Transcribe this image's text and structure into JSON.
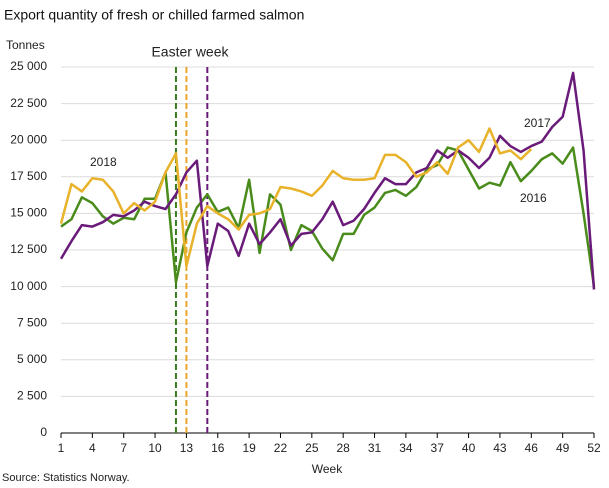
{
  "chart_data": {
    "type": "line",
    "title": "Export quantity of fresh or chilled farmed salmon",
    "y_label": "Tonnes",
    "x_label": "Week",
    "source": "Source: Statistics Norway.",
    "annotation": "Easter week",
    "x": [
      1,
      2,
      3,
      4,
      5,
      6,
      7,
      8,
      9,
      10,
      11,
      12,
      13,
      14,
      15,
      16,
      17,
      18,
      19,
      20,
      21,
      22,
      23,
      24,
      25,
      26,
      27,
      28,
      29,
      30,
      31,
      32,
      33,
      34,
      35,
      36,
      37,
      38,
      39,
      40,
      41,
      42,
      43,
      44,
      45,
      46,
      47,
      48,
      49,
      50,
      51,
      52
    ],
    "xlim": [
      1,
      52
    ],
    "xticks": [
      1,
      4,
      7,
      10,
      13,
      16,
      19,
      22,
      25,
      28,
      31,
      34,
      37,
      40,
      43,
      46,
      49,
      52
    ],
    "ylim": [
      0,
      25000
    ],
    "yticks": [
      {
        "value": 0,
        "label": "0"
      },
      {
        "value": 2500,
        "label": "2 500"
      },
      {
        "value": 5000,
        "label": "5 000"
      },
      {
        "value": 7500,
        "label": "7 500"
      },
      {
        "value": 10000,
        "label": "10 000"
      },
      {
        "value": 12500,
        "label": "12 500"
      },
      {
        "value": 15000,
        "label": "15 000"
      },
      {
        "value": 17500,
        "label": "17 500"
      },
      {
        "value": 20000,
        "label": "20 000"
      },
      {
        "value": 22500,
        "label": "22 500"
      },
      {
        "value": 25000,
        "label": "25 000"
      }
    ],
    "grid": true,
    "reference_lines": [
      {
        "x": 12,
        "color": "#3a7d1e"
      },
      {
        "x": 13,
        "color": "#e8a52a"
      },
      {
        "x": 15,
        "color": "#6a1b7a"
      }
    ],
    "series": [
      {
        "name": "2016",
        "color": "#4a8c1c",
        "values": [
          14100,
          14600,
          16100,
          15700,
          14800,
          14300,
          14700,
          14600,
          16000,
          16000,
          17800,
          10300,
          13700,
          15400,
          16300,
          15100,
          15400,
          14000,
          17300,
          12300,
          16300,
          15600,
          12500,
          14200,
          13800,
          12600,
          11800,
          13600,
          13600,
          14900,
          15400,
          16400,
          16600,
          16200,
          16800,
          18000,
          18300,
          19500,
          19300,
          18000,
          16700,
          17100,
          16900,
          18500,
          17200,
          17900,
          18700,
          19100,
          18400,
          19500,
          15000,
          10000
        ]
      },
      {
        "name": "2017",
        "color": "#6a1b7a",
        "values": [
          11900,
          13100,
          14200,
          14100,
          14400,
          14900,
          14800,
          15200,
          15800,
          15500,
          15300,
          16300,
          17800,
          18600,
          11400,
          14300,
          13800,
          12100,
          14300,
          12900,
          13700,
          14600,
          12800,
          13600,
          13700,
          14600,
          15800,
          14200,
          14500,
          15300,
          16400,
          17400,
          17000,
          17000,
          17800,
          18100,
          19300,
          18800,
          19300,
          18800,
          18100,
          18800,
          20300,
          19600,
          19200,
          19600,
          19900,
          20900,
          21600,
          24600,
          19300,
          9800
        ]
      },
      {
        "name": "2018",
        "color": "#e8b22a",
        "values": [
          14300,
          17000,
          16500,
          17400,
          17300,
          16500,
          15000,
          15700,
          15200,
          15800,
          17800,
          19100,
          11400,
          14300,
          15500,
          15000,
          14600,
          13900,
          14900,
          15000,
          15300,
          16800,
          16700,
          16500,
          16200,
          16900,
          17900,
          17400,
          17300,
          17300,
          17400,
          19000,
          19000,
          18500,
          17500,
          17800,
          18500,
          17700,
          19500,
          20000,
          19200,
          20800,
          19100,
          19300,
          18700,
          19400,
          null,
          null,
          null,
          null,
          null,
          null
        ]
      }
    ]
  }
}
